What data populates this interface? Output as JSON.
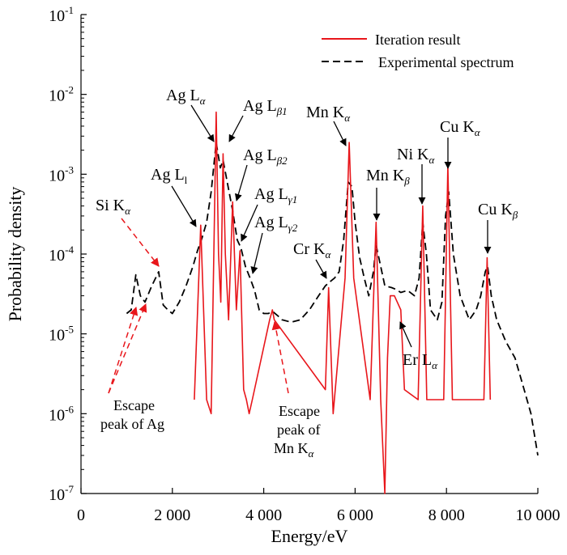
{
  "chart_data": {
    "type": "line",
    "xlabel": "Energy/eV",
    "ylabel": "Probability density",
    "xlim": [
      0,
      10000
    ],
    "ylim": [
      1e-07,
      0.1
    ],
    "y_scale": "log",
    "grid": false,
    "legend_position": "top-right",
    "x_ticks": [
      {
        "value": 0,
        "label": "0"
      },
      {
        "value": 2000,
        "label": "2 000"
      },
      {
        "value": 4000,
        "label": "4 000"
      },
      {
        "value": 6000,
        "label": "6 000"
      },
      {
        "value": 8000,
        "label": "8 000"
      },
      {
        "value": 10000,
        "label": "10 000"
      }
    ],
    "y_ticks": [
      {
        "exp": -7,
        "base": "10",
        "sup": "-7"
      },
      {
        "exp": -6,
        "base": "10",
        "sup": "-6"
      },
      {
        "exp": -5,
        "base": "10",
        "sup": "-5"
      },
      {
        "exp": -4,
        "base": "10",
        "sup": "-4"
      },
      {
        "exp": -3,
        "base": "10",
        "sup": "-3"
      },
      {
        "exp": -2,
        "base": "10",
        "sup": "-2"
      },
      {
        "exp": -1,
        "base": "10",
        "sup": "-1"
      }
    ],
    "series": [
      {
        "name": "Iteration result",
        "color": "#e8161b",
        "style": "solid",
        "points": [
          [
            2480,
            1.5e-06
          ],
          [
            2620,
            0.00023
          ],
          [
            2750,
            1.5e-06
          ],
          [
            2850,
            1e-06
          ],
          [
            2960,
            0.006
          ],
          [
            3010,
            0.0001
          ],
          [
            3060,
            2.5e-05
          ],
          [
            3110,
            0.0018
          ],
          [
            3160,
            0.0001
          ],
          [
            3230,
            1.5e-05
          ],
          [
            3320,
            0.00045
          ],
          [
            3400,
            2e-05
          ],
          [
            3480,
            0.00011
          ],
          [
            3560,
            2e-06
          ],
          [
            3620,
            1.5e-06
          ],
          [
            3680,
            1e-06
          ],
          [
            3750,
            1.5e-06
          ],
          [
            4130,
            1.5e-05
          ],
          [
            4190,
            2e-05
          ],
          [
            4230,
            1.5e-05
          ],
          [
            5350,
            2e-06
          ],
          [
            5420,
            3.8e-05
          ],
          [
            5520,
            1e-06
          ],
          [
            5780,
            5e-05
          ],
          [
            5870,
            0.0025
          ],
          [
            5970,
            5e-05
          ],
          [
            6330,
            1.5e-06
          ],
          [
            6460,
            0.00025
          ],
          [
            6560,
            1.5e-06
          ],
          [
            6650,
            1e-07
          ],
          [
            6710,
            5e-06
          ],
          [
            6770,
            3e-05
          ],
          [
            6860,
            3e-05
          ],
          [
            7000,
            2e-05
          ],
          [
            7080,
            2e-06
          ],
          [
            7380,
            1.5e-06
          ],
          [
            7480,
            0.0004
          ],
          [
            7570,
            1.5e-06
          ],
          [
            7940,
            1.5e-06
          ],
          [
            8030,
            0.0013
          ],
          [
            8130,
            1.5e-06
          ],
          [
            8820,
            1.5e-06
          ],
          [
            8890,
            9e-05
          ],
          [
            8960,
            1.5e-06
          ]
        ]
      },
      {
        "name": "Experimental spectrum",
        "color": "#000000",
        "style": "dashed",
        "points": [
          [
            1000,
            1.8e-05
          ],
          [
            1100,
            2e-05
          ],
          [
            1200,
            5.5e-05
          ],
          [
            1300,
            3e-05
          ],
          [
            1400,
            2.5e-05
          ],
          [
            1550,
            4e-05
          ],
          [
            1700,
            6e-05
          ],
          [
            1800,
            2.3e-05
          ],
          [
            1900,
            2e-05
          ],
          [
            2000,
            1.8e-05
          ],
          [
            2150,
            2.5e-05
          ],
          [
            2300,
            4e-05
          ],
          [
            2450,
            7e-05
          ],
          [
            2550,
            0.00011
          ],
          [
            2650,
            0.00016
          ],
          [
            2750,
            0.00025
          ],
          [
            2850,
            0.0006
          ],
          [
            2960,
            0.0025
          ],
          [
            3050,
            0.0012
          ],
          [
            3110,
            0.0015
          ],
          [
            3200,
            0.0008
          ],
          [
            3320,
            0.00035
          ],
          [
            3420,
            0.00015
          ],
          [
            3500,
            0.00012
          ],
          [
            3600,
            7e-05
          ],
          [
            3700,
            5e-05
          ],
          [
            3800,
            3.5e-05
          ],
          [
            3900,
            2e-05
          ],
          [
            4000,
            1.8e-05
          ],
          [
            4100,
            1.8e-05
          ],
          [
            4200,
            1.9e-05
          ],
          [
            4300,
            1.7e-05
          ],
          [
            4400,
            1.5e-05
          ],
          [
            4600,
            1.4e-05
          ],
          [
            4800,
            1.5e-05
          ],
          [
            5000,
            2e-05
          ],
          [
            5200,
            3e-05
          ],
          [
            5350,
            4e-05
          ],
          [
            5450,
            4.5e-05
          ],
          [
            5550,
            5e-05
          ],
          [
            5650,
            6e-05
          ],
          [
            5750,
            0.00015
          ],
          [
            5850,
            0.0008
          ],
          [
            5930,
            0.0007
          ],
          [
            6000,
            0.00025
          ],
          [
            6100,
            9e-05
          ],
          [
            6200,
            5e-05
          ],
          [
            6300,
            3e-05
          ],
          [
            6400,
            6e-05
          ],
          [
            6460,
            0.00013
          ],
          [
            6560,
            7e-05
          ],
          [
            6650,
            4e-05
          ],
          [
            6800,
            3.8e-05
          ],
          [
            6900,
            3.6e-05
          ],
          [
            7000,
            3.3e-05
          ],
          [
            7150,
            3.5e-05
          ],
          [
            7300,
            3e-05
          ],
          [
            7400,
            5e-05
          ],
          [
            7480,
            0.00025
          ],
          [
            7560,
            0.0001
          ],
          [
            7650,
            2e-05
          ],
          [
            7800,
            1.5e-05
          ],
          [
            7900,
            2.5e-05
          ],
          [
            7980,
            0.0003
          ],
          [
            8050,
            0.0006
          ],
          [
            8150,
            0.0001
          ],
          [
            8300,
            3e-05
          ],
          [
            8500,
            1.5e-05
          ],
          [
            8650,
            2e-05
          ],
          [
            8750,
            3e-05
          ],
          [
            8850,
            6e-05
          ],
          [
            8900,
            7e-05
          ],
          [
            8980,
            3e-05
          ],
          [
            9100,
            1.5e-05
          ],
          [
            9300,
            8e-06
          ],
          [
            9500,
            5e-06
          ],
          [
            9700,
            2e-06
          ],
          [
            9850,
            1e-06
          ],
          [
            10000,
            3e-07
          ]
        ]
      }
    ],
    "annotations": [
      {
        "id": "ag-la",
        "text": "Ag L",
        "sub": "α"
      },
      {
        "id": "ag-lb1",
        "text": "Ag L",
        "sub": "β1"
      },
      {
        "id": "ag-lb2",
        "text": "Ag L",
        "sub": "β2"
      },
      {
        "id": "ag-ll",
        "text": "Ag L",
        "sub": "l"
      },
      {
        "id": "ag-lg1",
        "text": "Ag L",
        "sub": "γ1"
      },
      {
        "id": "ag-lg2",
        "text": "Ag L",
        "sub": "γ2"
      },
      {
        "id": "si-ka",
        "text": "Si K",
        "sub": "α"
      },
      {
        "id": "mn-ka",
        "text": "Mn K",
        "sub": "α"
      },
      {
        "id": "mn-kb",
        "text": "Mn K",
        "sub": "β"
      },
      {
        "id": "cr-ka",
        "text": "Cr K",
        "sub": "α"
      },
      {
        "id": "ni-ka",
        "text": "Ni K",
        "sub": "α"
      },
      {
        "id": "cu-ka",
        "text": "Cu K",
        "sub": "α"
      },
      {
        "id": "cu-kb",
        "text": "Cu K",
        "sub": "β"
      },
      {
        "id": "er-la",
        "text": "Er L",
        "sub": "α"
      },
      {
        "id": "esc-ag-1",
        "text": "Escape"
      },
      {
        "id": "esc-ag-2",
        "text": "peak of Ag"
      },
      {
        "id": "esc-mn-1",
        "text": "Escape"
      },
      {
        "id": "esc-mn-2",
        "text": "peak of"
      },
      {
        "id": "esc-mn-3",
        "text": "Mn K",
        "sub": "α"
      }
    ]
  }
}
